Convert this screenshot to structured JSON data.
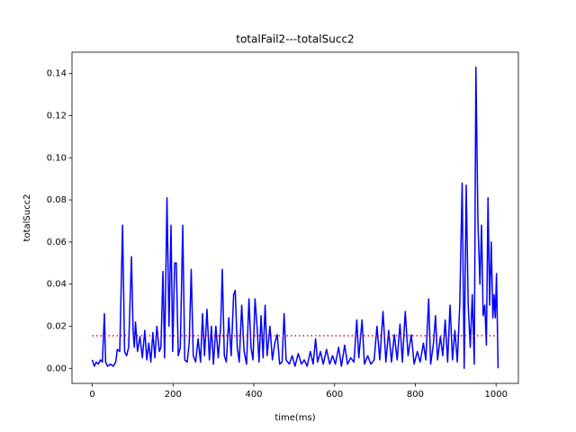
{
  "chart_data": {
    "type": "line",
    "title": "totalFail2---totalSucc2",
    "x_label": "time(ms)",
    "y_label": "totalSucc2",
    "xlim": [
      -50.25,
      1055.25
    ],
    "xticks": [
      0,
      200,
      400,
      600,
      800,
      1000
    ],
    "ylim": [
      -0.00715,
      0.15015
    ],
    "yticks": [
      {
        "value": 0,
        "label": "0.00"
      },
      {
        "value": 0.02,
        "label": "0.02"
      },
      {
        "value": 0.04,
        "label": "0.04"
      },
      {
        "value": 0.06,
        "label": "0.06"
      },
      {
        "value": 0.08,
        "label": "0.08"
      },
      {
        "value": 0.1,
        "label": "0.10"
      },
      {
        "value": 0.12,
        "label": "0.12"
      },
      {
        "value": 0.14,
        "label": "0.14"
      }
    ],
    "grid": false,
    "legend": false,
    "series": [
      {
        "color": "#0000ff",
        "linestyle": "solid",
        "x": [
          0,
          5,
          10,
          15,
          20,
          25,
          30,
          33,
          38,
          45,
          52,
          58,
          62,
          68,
          75,
          80,
          85,
          90,
          97,
          101,
          104,
          107,
          112,
          118,
          124,
          130,
          135,
          140,
          145,
          150,
          155,
          160,
          166,
          170,
          175,
          179,
          185,
          190,
          195,
          199,
          204,
          208,
          213,
          218,
          224,
          229,
          235,
          240,
          245,
          250,
          256,
          262,
          268,
          273,
          278,
          284,
          290,
          295,
          300,
          306,
          312,
          318,
          322,
          327,
          332,
          338,
          344,
          350,
          354,
          359,
          364,
          370,
          376,
          382,
          388,
          393,
          398,
          403,
          408,
          413,
          418,
          423,
          428,
          433,
          440,
          446,
          452,
          458,
          464,
          470,
          475,
          480,
          488,
          495,
          502,
          510,
          518,
          525,
          532,
          540,
          547,
          553,
          558,
          565,
          572,
          580,
          588,
          595,
          602,
          610,
          617,
          625,
          632,
          640,
          648,
          655,
          660,
          668,
          674,
          682,
          690,
          698,
          705,
          712,
          720,
          727,
          734,
          741,
          748,
          755,
          762,
          768,
          775,
          782,
          790,
          797,
          805,
          812,
          820,
          826,
          833,
          838,
          845,
          850,
          855,
          862,
          868,
          874,
          880,
          886,
          892,
          898,
          904,
          910,
          916,
          921,
          926,
          931,
          936,
          941,
          946,
          950,
          955,
          960,
          964,
          968,
          972,
          976,
          980,
          984,
          988,
          992,
          995,
          998,
          1001,
          1005
        ],
        "values": [
          0.004,
          0.001,
          0.003,
          0.002,
          0.004,
          0.003,
          0.026,
          0.003,
          0.001,
          0.002,
          0.001,
          0.003,
          0.009,
          0.008,
          0.068,
          0.008,
          0.006,
          0.01,
          0.053,
          0.018,
          0.01,
          0.022,
          0.008,
          0.015,
          0.005,
          0.018,
          0.004,
          0.012,
          0.003,
          0.017,
          0.005,
          0.02,
          0.008,
          0.01,
          0.046,
          0.005,
          0.081,
          0.02,
          0.068,
          0.008,
          0.05,
          0.05,
          0.006,
          0.01,
          0.068,
          0.004,
          0.003,
          0.012,
          0.047,
          0.006,
          0.003,
          0.014,
          0.003,
          0.026,
          0.006,
          0.028,
          0.004,
          0.02,
          0.002,
          0.02,
          0.005,
          0.02,
          0.047,
          0.006,
          0.003,
          0.024,
          0.006,
          0.035,
          0.037,
          0.01,
          0.003,
          0.03,
          0.008,
          0.002,
          0.033,
          0.01,
          0.004,
          0.033,
          0.02,
          0.003,
          0.025,
          0.005,
          0.03,
          0.006,
          0.02,
          0.004,
          0.012,
          0.016,
          0.002,
          0.003,
          0.026,
          0.004,
          0.002,
          0.006,
          0.001,
          0.007,
          0.002,
          0.004,
          0.001,
          0.008,
          0.002,
          0.014,
          0.003,
          0.008,
          0.002,
          0.009,
          0.002,
          0.006,
          0.002,
          0.01,
          0.001,
          0.011,
          0.002,
          0.005,
          0.003,
          0.023,
          0.005,
          0.023,
          0.002,
          0.006,
          0.002,
          0.004,
          0.02,
          0.004,
          0.027,
          0.003,
          0.018,
          0.003,
          0.016,
          0.004,
          0.021,
          0.003,
          0.027,
          0.006,
          0.016,
          0.002,
          0.008,
          0.003,
          0.012,
          0.004,
          0.033,
          0.002,
          0.012,
          0.025,
          0.004,
          0.015,
          0.006,
          0.023,
          0.003,
          0.03,
          0.004,
          0.018,
          0.003,
          0.03,
          0.088,
          0.0,
          0.087,
          0.03,
          0.01,
          0.035,
          0.002,
          0.143,
          0.07,
          0.04,
          0.068,
          0.025,
          0.03,
          0.011,
          0.081,
          0.03,
          0.06,
          0.024,
          0.035,
          0.024,
          0.045,
          0.0
        ]
      },
      {
        "color": "#ff0000",
        "linestyle": "dotted",
        "x": [
          0,
          1005
        ],
        "values": [
          0.0155,
          0.0155
        ]
      }
    ]
  }
}
